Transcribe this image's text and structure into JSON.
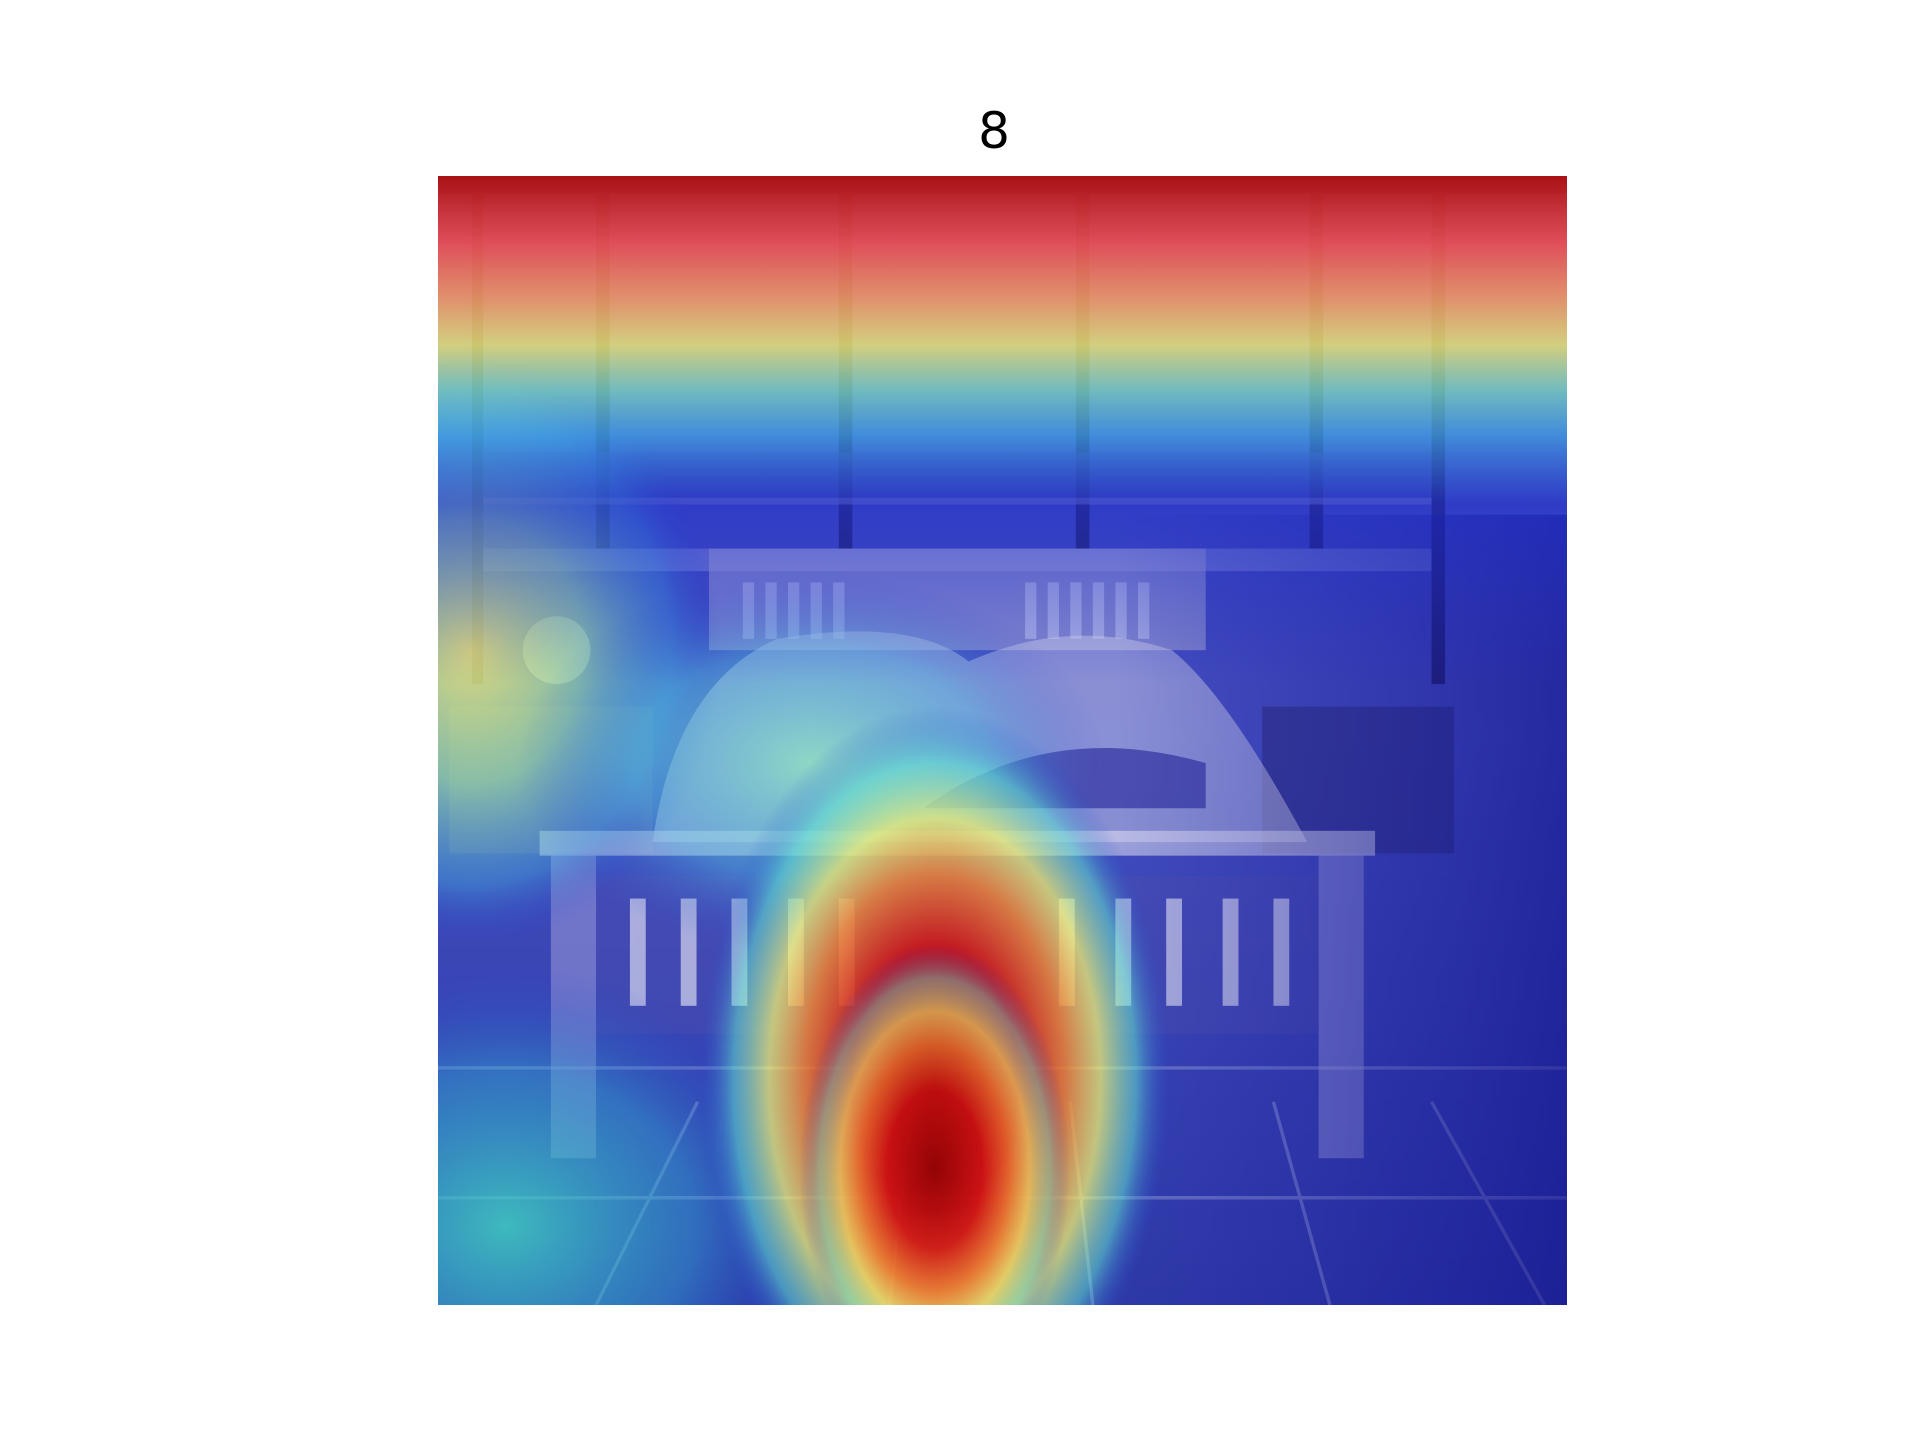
{
  "figure": {
    "title": "8"
  },
  "image": {
    "subject": "bedroom-with-bed-and-window",
    "overlay": "attention-heatmap-jet-colormap",
    "colors": {
      "hot": "#d7191c",
      "warm": "#fdae61",
      "mid": "#ffff8c",
      "cool": "#2b83ba",
      "cold": "#1a1a9e"
    }
  }
}
